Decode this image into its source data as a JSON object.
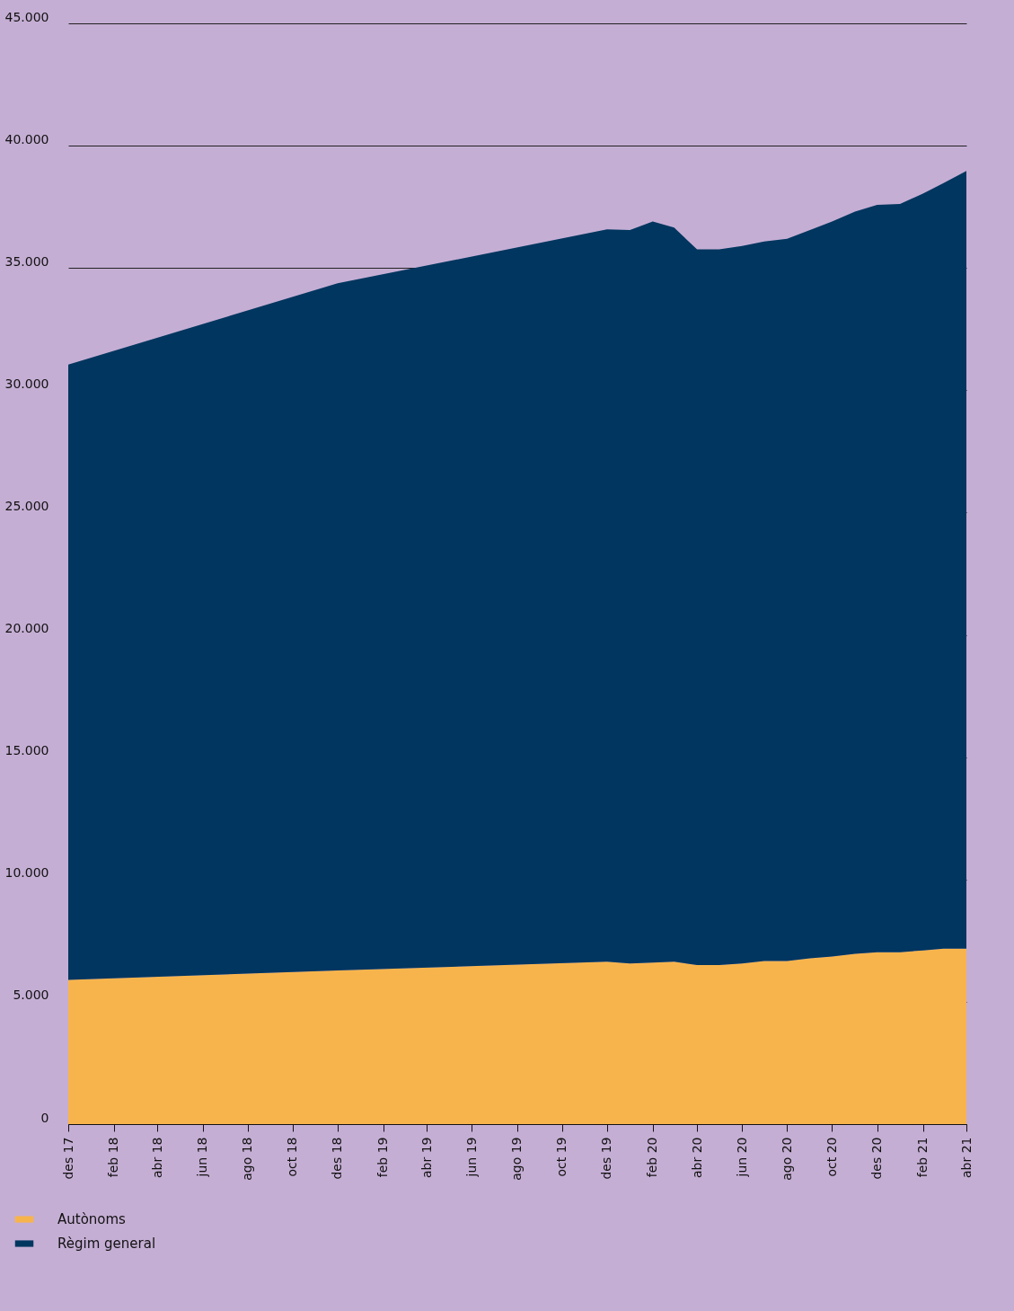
{
  "chart_data": {
    "type": "area",
    "stacked": true,
    "x": [
      "2017-12",
      "2018-12",
      "2019-12",
      "2020-01",
      "2020-02",
      "2020-03",
      "2020-04",
      "2020-05",
      "2020-06",
      "2020-07",
      "2020-08",
      "2020-09",
      "2020-10",
      "2020-11",
      "2020-12",
      "2021-01",
      "2021-02",
      "2021-03",
      "2021-04"
    ],
    "series": [
      {
        "name": "Autònoms",
        "color": "#f8b44c",
        "values": [
          5900,
          6280,
          6640,
          6570,
          6600,
          6640,
          6500,
          6500,
          6570,
          6670,
          6670,
          6780,
          6850,
          6960,
          7030,
          7030,
          7100,
          7170,
          7170
        ]
      },
      {
        "name": "Règim general",
        "color": "#00365f",
        "values": [
          25150,
          28090,
          29940,
          29980,
          30300,
          30010,
          29260,
          29260,
          29330,
          29410,
          29520,
          29770,
          30050,
          30340,
          30550,
          30590,
          30940,
          31300,
          31800
        ]
      }
    ],
    "xlim": [
      "2017-12",
      "2021-04"
    ],
    "xticks": [
      {
        "value": "2017-12",
        "label": "des 17"
      },
      {
        "value": "2018-02",
        "label": "feb 18"
      },
      {
        "value": "2018-04",
        "label": "abr 18"
      },
      {
        "value": "2018-06",
        "label": "jun 18"
      },
      {
        "value": "2018-08",
        "label": "ago 18"
      },
      {
        "value": "2018-10",
        "label": "oct 18"
      },
      {
        "value": "2018-12",
        "label": "des 18"
      },
      {
        "value": "2019-02",
        "label": "feb 19"
      },
      {
        "value": "2019-04",
        "label": "abr 19"
      },
      {
        "value": "2019-06",
        "label": "jun 19"
      },
      {
        "value": "2019-08",
        "label": "ago 19"
      },
      {
        "value": "2019-10",
        "label": "oct 19"
      },
      {
        "value": "2019-12",
        "label": "des 19"
      },
      {
        "value": "2020-02",
        "label": "feb 20"
      },
      {
        "value": "2020-04",
        "label": "abr 20"
      },
      {
        "value": "2020-06",
        "label": "jun 20"
      },
      {
        "value": "2020-08",
        "label": "ago 20"
      },
      {
        "value": "2020-10",
        "label": "oct 20"
      },
      {
        "value": "2020-12",
        "label": "des 20"
      },
      {
        "value": "2021-02",
        "label": "feb 21"
      },
      {
        "value": "2021-04",
        "label": "abr 21"
      }
    ],
    "ylim": [
      0,
      45000
    ],
    "yticks": [
      0,
      {
        "value": 5000,
        "label": "5.000"
      },
      {
        "value": 10000,
        "label": "10.000"
      },
      {
        "value": 15000,
        "label": "15.000"
      },
      {
        "value": 20000,
        "label": "20.000"
      },
      {
        "value": 25000,
        "label": "25.000"
      },
      {
        "value": 30000,
        "label": "30.000"
      },
      {
        "value": 35000,
        "label": "35.000"
      },
      {
        "value": 40000,
        "label": "40.000"
      },
      {
        "value": 45000,
        "label": "45.000"
      }
    ],
    "grid": "y",
    "legend": "bottom left"
  }
}
